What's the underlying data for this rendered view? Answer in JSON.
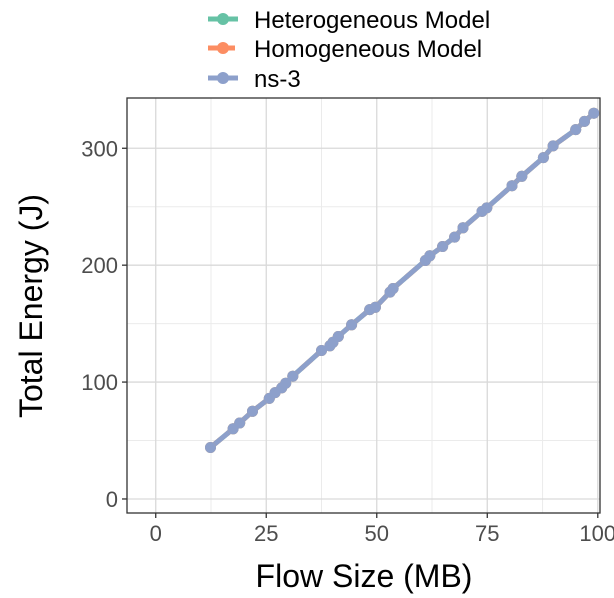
{
  "chart_data": {
    "type": "line",
    "xlabel": "Flow Size (MB)",
    "ylabel": "Total Energy (J)",
    "xlim": [
      -6.5,
      100.5
    ],
    "ylim": [
      -12,
      343
    ],
    "x_ticks": [
      0,
      25,
      50,
      75,
      100
    ],
    "y_ticks": [
      0,
      100,
      200,
      300
    ],
    "grid": true,
    "legend_position": "top",
    "series": [
      {
        "name": "Heterogeneous Model",
        "color": "#66c2a5",
        "dashed": false,
        "points": [
          [
            12.4,
            44
          ],
          [
            17.5,
            60
          ],
          [
            19,
            65
          ],
          [
            21.9,
            75
          ],
          [
            25.7,
            86
          ],
          [
            27,
            91
          ],
          [
            28.5,
            95
          ],
          [
            29.4,
            99
          ],
          [
            31,
            105
          ],
          [
            37.5,
            127
          ],
          [
            39.4,
            131
          ],
          [
            40.1,
            134
          ],
          [
            41.3,
            139
          ],
          [
            44.3,
            149
          ],
          [
            48.4,
            162
          ],
          [
            49.7,
            164
          ],
          [
            53,
            177
          ],
          [
            53.7,
            180
          ],
          [
            61,
            204
          ],
          [
            62,
            208
          ],
          [
            64.9,
            216
          ],
          [
            67.6,
            224
          ],
          [
            69.5,
            232
          ],
          [
            73.8,
            246
          ],
          [
            74.9,
            249
          ],
          [
            80.6,
            268
          ],
          [
            82.8,
            276
          ],
          [
            87.7,
            292
          ],
          [
            89.9,
            302
          ],
          [
            95,
            316
          ],
          [
            97,
            323
          ],
          [
            99.1,
            330
          ]
        ]
      },
      {
        "name": "Homogeneous Model",
        "color": "#fc8d62",
        "dashed": true,
        "points": [
          [
            12.4,
            44
          ],
          [
            17.5,
            60
          ],
          [
            19,
            65
          ],
          [
            21.9,
            75
          ],
          [
            25.7,
            86
          ],
          [
            27,
            91
          ],
          [
            28.5,
            95
          ],
          [
            29.4,
            99
          ],
          [
            31,
            105
          ],
          [
            37.5,
            127
          ],
          [
            39.4,
            131
          ],
          [
            40.1,
            134
          ],
          [
            41.3,
            139
          ],
          [
            44.3,
            149
          ],
          [
            48.4,
            162
          ],
          [
            49.7,
            164
          ],
          [
            53,
            177
          ],
          [
            53.7,
            180
          ],
          [
            61,
            204
          ],
          [
            62,
            208
          ],
          [
            64.9,
            216
          ],
          [
            67.6,
            224
          ],
          [
            69.5,
            232
          ],
          [
            73.8,
            246
          ],
          [
            74.9,
            249
          ],
          [
            80.6,
            268
          ],
          [
            82.8,
            276
          ],
          [
            87.7,
            292
          ],
          [
            89.9,
            302
          ],
          [
            95,
            316
          ],
          [
            97,
            323
          ],
          [
            99.1,
            330
          ]
        ]
      },
      {
        "name": "ns-3",
        "color": "#8da0cb",
        "dashed": false,
        "points": [
          [
            12.4,
            44
          ],
          [
            17.5,
            60
          ],
          [
            19,
            65
          ],
          [
            21.9,
            75
          ],
          [
            25.7,
            86
          ],
          [
            27,
            91
          ],
          [
            28.5,
            95
          ],
          [
            29.4,
            99
          ],
          [
            31,
            105
          ],
          [
            37.5,
            127
          ],
          [
            39.4,
            131
          ],
          [
            40.1,
            134
          ],
          [
            41.3,
            139
          ],
          [
            44.3,
            149
          ],
          [
            48.4,
            162
          ],
          [
            49.7,
            164
          ],
          [
            53,
            177
          ],
          [
            53.7,
            180
          ],
          [
            61,
            204
          ],
          [
            62,
            208
          ],
          [
            64.9,
            216
          ],
          [
            67.6,
            224
          ],
          [
            69.5,
            232
          ],
          [
            73.8,
            246
          ],
          [
            74.9,
            249
          ],
          [
            80.6,
            268
          ],
          [
            82.8,
            276
          ],
          [
            87.7,
            292
          ],
          [
            89.9,
            302
          ],
          [
            95,
            316
          ],
          [
            97,
            323
          ],
          [
            99.1,
            330
          ]
        ]
      }
    ]
  }
}
